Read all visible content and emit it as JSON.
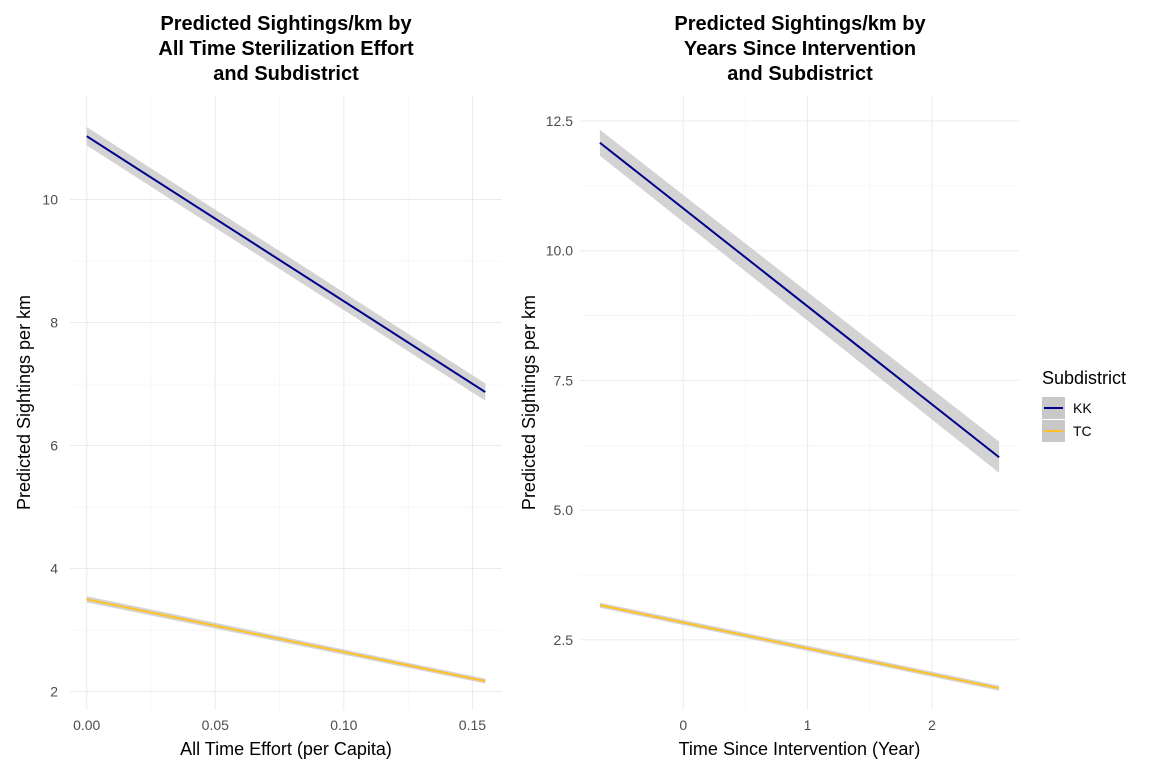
{
  "colors": {
    "KK": "#00008B",
    "TC": "#FFC125",
    "ribbon": "#C8C8C8",
    "grid": "#EBEBEB"
  },
  "legend": {
    "title": "Subdistrict",
    "items": [
      "KK",
      "TC"
    ]
  },
  "chart_data": [
    {
      "type": "line",
      "title": "Predicted Sightings/km by\nAll Time Sterilization Effort\nand Subdistrict",
      "xlabel": "All Time Effort (per Capita)",
      "ylabel": "Predicted Sightings per km",
      "xlim": [
        -0.0065,
        0.1615
      ],
      "ylim": [
        1.7,
        11.7
      ],
      "xticks": [
        0.0,
        0.05,
        0.1,
        0.15
      ],
      "xtick_labels": [
        "0.00",
        "0.05",
        "0.10",
        "0.15"
      ],
      "yticks": [
        2,
        4,
        6,
        8,
        10
      ],
      "ytick_labels": [
        "2",
        "4",
        "6",
        "8",
        "10"
      ],
      "series": [
        {
          "name": "KK",
          "x": [
            0.0,
            0.155
          ],
          "y": [
            11.03,
            6.87
          ],
          "ci_halfwidth": [
            0.15,
            0.14
          ]
        },
        {
          "name": "TC",
          "x": [
            0.0,
            0.155
          ],
          "y": [
            3.5,
            2.17
          ],
          "ci_halfwidth": [
            0.05,
            0.04
          ]
        }
      ]
    },
    {
      "type": "line",
      "title": "Predicted Sightings/km by\nYears Since Intervention\nand Subdistrict",
      "xlabel": "Time Since Intervention (Year)",
      "ylabel": "Predicted Sightings per km",
      "xlim": [
        -0.83,
        2.7
      ],
      "ylim": [
        1.15,
        13.0
      ],
      "xticks": [
        0,
        1,
        2
      ],
      "xtick_labels": [
        "0",
        "1",
        "2"
      ],
      "yticks": [
        2.5,
        5.0,
        7.5,
        10.0,
        12.5
      ],
      "ytick_labels": [
        "2.5",
        "5.0",
        "7.5",
        "10.0",
        "12.5"
      ],
      "series": [
        {
          "name": "KK",
          "x": [
            -0.67,
            2.54
          ],
          "y": [
            12.08,
            6.02
          ],
          "ci_halfwidth": [
            0.25,
            0.3
          ]
        },
        {
          "name": "TC",
          "x": [
            -0.67,
            2.54
          ],
          "y": [
            3.17,
            1.57
          ],
          "ci_halfwidth": [
            0.05,
            0.05
          ]
        }
      ]
    }
  ]
}
